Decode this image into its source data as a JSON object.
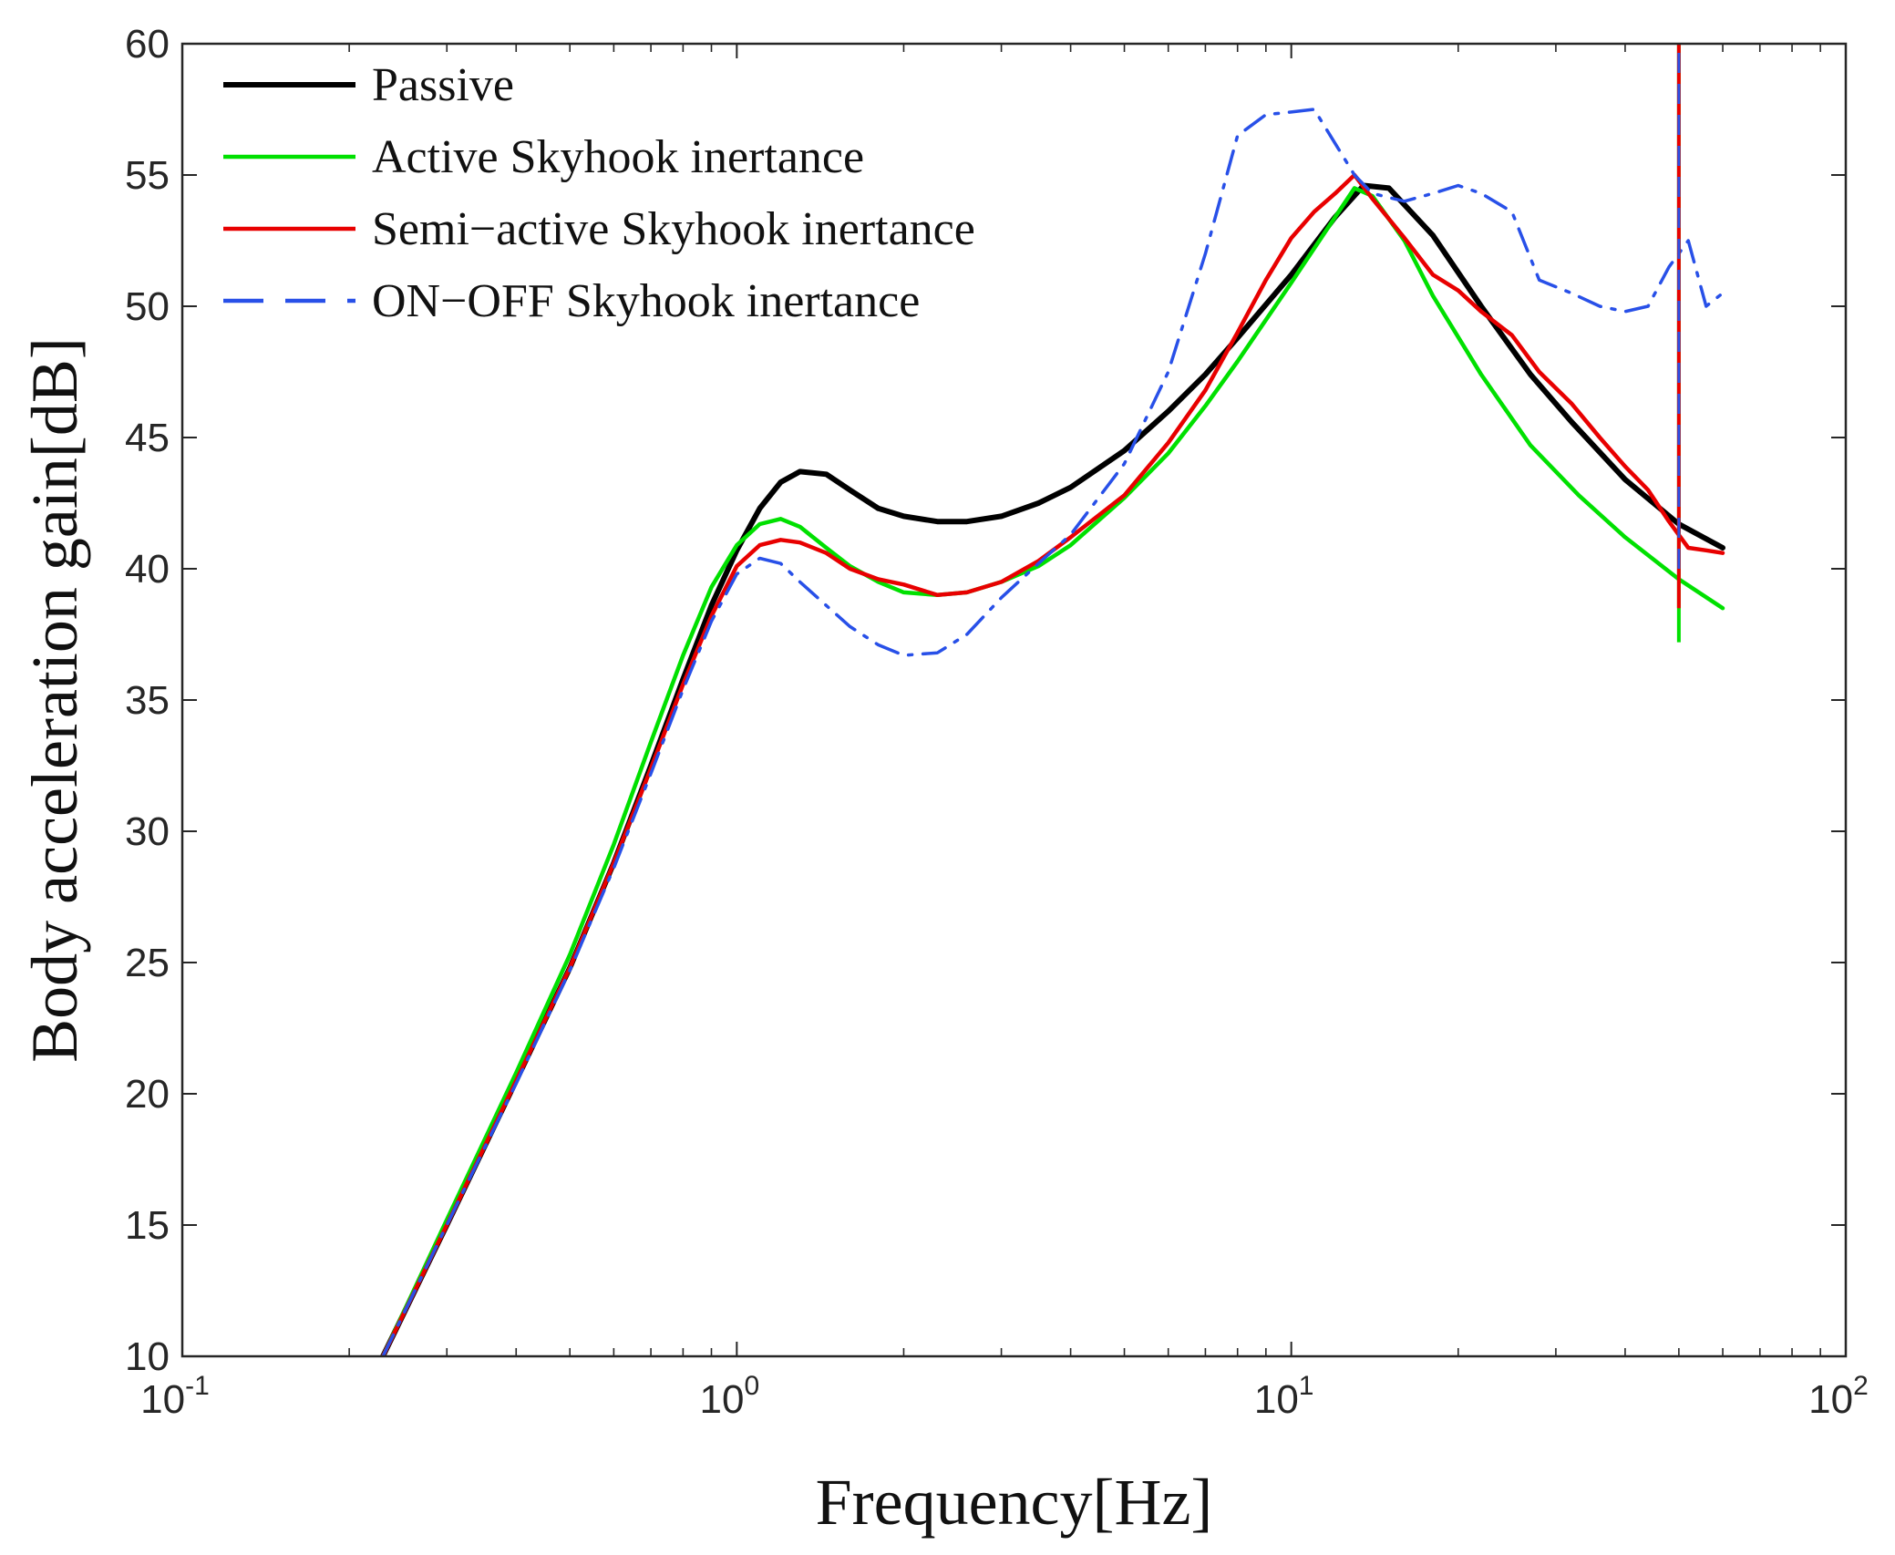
{
  "chart_data": {
    "type": "line",
    "title": "",
    "xlabel": "Frequency[Hz]",
    "ylabel": "Body acceleration gain[dB]",
    "xscale": "log",
    "xlim": [
      0.1,
      100
    ],
    "ylim": [
      10,
      60
    ],
    "x_ticks": [
      {
        "base": "10",
        "exp": "-1",
        "value": 0.1
      },
      {
        "base": "10",
        "exp": "0",
        "value": 1
      },
      {
        "base": "10",
        "exp": "1",
        "value": 10
      },
      {
        "base": "10",
        "exp": "2",
        "value": 100
      }
    ],
    "y_ticks": [
      "10",
      "15",
      "20",
      "25",
      "30",
      "35",
      "40",
      "45",
      "50",
      "55",
      "60"
    ],
    "legend_position": "top-left",
    "series": [
      {
        "name": "Passive",
        "color": "#000000",
        "style": "solid",
        "x": [
          0.23,
          0.3,
          0.4,
          0.5,
          0.6,
          0.7,
          0.8,
          0.9,
          1.0,
          1.1,
          1.2,
          1.3,
          1.45,
          1.6,
          1.8,
          2.0,
          2.3,
          2.6,
          3.0,
          3.5,
          4.0,
          5.0,
          6.0,
          7.0,
          8.0,
          10.0,
          12.0,
          13.5,
          15.0,
          18.0,
          22.0,
          27.0,
          32.0,
          40.0,
          50.0,
          60.0
        ],
        "values": [
          10.0,
          15.0,
          20.5,
          24.8,
          28.8,
          32.5,
          35.8,
          38.6,
          40.7,
          42.3,
          43.3,
          43.7,
          43.6,
          43.0,
          42.3,
          42.0,
          41.8,
          41.8,
          42.0,
          42.5,
          43.1,
          44.5,
          46.0,
          47.4,
          48.8,
          51.2,
          53.4,
          54.6,
          54.5,
          52.7,
          50.0,
          47.4,
          45.6,
          43.4,
          41.7,
          40.8
        ]
      },
      {
        "name": "Active Skyhook inertance",
        "color": "#00e000",
        "style": "solid",
        "x": [
          0.23,
          0.3,
          0.4,
          0.5,
          0.6,
          0.7,
          0.8,
          0.9,
          1.0,
          1.1,
          1.2,
          1.3,
          1.45,
          1.6,
          1.8,
          2.0,
          2.3,
          2.6,
          3.0,
          3.5,
          4.0,
          5.0,
          6.0,
          7.0,
          8.0,
          10.0,
          12.0,
          13.0,
          14.0,
          16.0,
          18.0,
          22.0,
          27.0,
          33.0,
          40.0,
          50.0,
          60.0
        ],
        "values": [
          10.0,
          15.2,
          20.8,
          25.3,
          29.5,
          33.4,
          36.7,
          39.3,
          40.9,
          41.7,
          41.9,
          41.6,
          40.8,
          40.1,
          39.5,
          39.1,
          39.0,
          39.1,
          39.5,
          40.1,
          40.9,
          42.7,
          44.4,
          46.2,
          47.9,
          50.9,
          53.4,
          54.5,
          54.2,
          52.5,
          50.4,
          47.4,
          44.7,
          42.8,
          41.2,
          39.6,
          38.5
        ]
      },
      {
        "name": "Semi−active Skyhook inertance",
        "color": "#e80000",
        "style": "solid",
        "x": [
          0.23,
          0.3,
          0.4,
          0.5,
          0.6,
          0.7,
          0.8,
          0.9,
          1.0,
          1.1,
          1.2,
          1.3,
          1.45,
          1.6,
          1.8,
          2.0,
          2.3,
          2.6,
          3.0,
          3.5,
          4.0,
          5.0,
          6.0,
          7.0,
          8.0,
          9.0,
          10.0,
          11.0,
          12.0,
          13.0,
          14.0,
          16.0,
          18.0,
          20.0,
          22.0,
          25.0,
          28.0,
          32.0,
          36.0,
          40.0,
          44.0,
          48.0,
          52.0,
          56.0,
          60.0
        ],
        "values": [
          10.0,
          15.0,
          20.5,
          24.8,
          28.8,
          32.4,
          35.6,
          38.2,
          40.1,
          40.9,
          41.1,
          41.0,
          40.6,
          40.0,
          39.6,
          39.4,
          39.0,
          39.1,
          39.5,
          40.3,
          41.2,
          42.8,
          44.8,
          46.8,
          49.0,
          51.0,
          52.6,
          53.6,
          54.3,
          55.0,
          54.1,
          52.6,
          51.2,
          50.6,
          49.8,
          48.9,
          47.5,
          46.3,
          45.0,
          43.9,
          43.0,
          41.8,
          40.8,
          40.7,
          40.6
        ]
      },
      {
        "name": "ON−OFF Skyhook inertance",
        "color": "#2850e8",
        "style": "dashed",
        "x": [
          0.23,
          0.3,
          0.4,
          0.5,
          0.6,
          0.7,
          0.8,
          0.9,
          1.0,
          1.1,
          1.2,
          1.3,
          1.45,
          1.6,
          1.8,
          2.0,
          2.3,
          2.6,
          3.0,
          3.5,
          4.0,
          5.0,
          6.0,
          7.0,
          8.0,
          9.0,
          10.0,
          11.0,
          12.0,
          13.0,
          14.0,
          16.0,
          18.0,
          20.0,
          22.0,
          25.0,
          28.0,
          32.0,
          36.0,
          40.0,
          44.0,
          48.0,
          52.0,
          56.0,
          60.0
        ],
        "values": [
          10.0,
          15.0,
          20.4,
          24.7,
          28.6,
          32.2,
          35.4,
          38.0,
          39.8,
          40.4,
          40.2,
          39.5,
          38.6,
          37.8,
          37.1,
          36.7,
          36.8,
          37.5,
          38.9,
          40.2,
          41.3,
          44.0,
          47.5,
          52.0,
          56.5,
          57.3,
          57.4,
          57.5,
          56.2,
          55.0,
          54.3,
          54.0,
          54.3,
          54.6,
          54.3,
          53.6,
          51.0,
          50.5,
          50.0,
          49.8,
          50.0,
          51.5,
          52.5,
          50.0,
          50.5
        ]
      }
    ],
    "spike": {
      "x": 50.0,
      "ymin": 37.2,
      "ymax": 60.0
    }
  }
}
